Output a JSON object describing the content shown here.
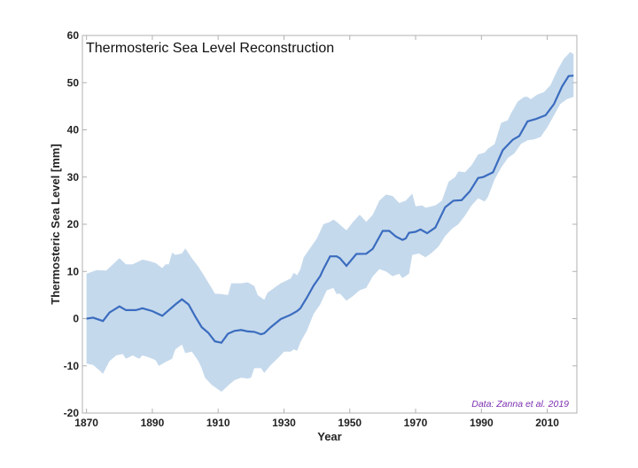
{
  "chart_data": {
    "type": "line",
    "title": "Thermosteric Sea Level Reconstruction",
    "xlabel": "Year",
    "ylabel": "Thermosteric Sea Level [mm]",
    "annotation": "Data: Zanna et al. 2019",
    "xlim": [
      1868.75,
      2019
    ],
    "ylim": [
      -20,
      60
    ],
    "xticks": [
      1870,
      1890,
      1910,
      1930,
      1950,
      1970,
      1990,
      2010
    ],
    "yticks": [
      -20,
      -10,
      0,
      10,
      20,
      30,
      40,
      50,
      60
    ],
    "grid": false,
    "colors": {
      "line": "#3a6cbf",
      "band": "#c5d9ec",
      "annotation": "#7b2fb0",
      "axis": "#b0b0b0"
    },
    "mean": [
      [
        1870,
        0
      ],
      [
        1872,
        0.2
      ],
      [
        1875,
        -0.5
      ],
      [
        1877,
        1.3
      ],
      [
        1880,
        2.6
      ],
      [
        1882,
        1.8
      ],
      [
        1885,
        1.8
      ],
      [
        1887,
        2.2
      ],
      [
        1890,
        1.6
      ],
      [
        1893,
        0.6
      ],
      [
        1895,
        1.8
      ],
      [
        1897,
        3
      ],
      [
        1899,
        4.1
      ],
      [
        1901,
        3
      ],
      [
        1903,
        0.5
      ],
      [
        1905,
        -1.8
      ],
      [
        1907,
        -3
      ],
      [
        1909,
        -4.8
      ],
      [
        1911,
        -5.1
      ],
      [
        1913,
        -3.2
      ],
      [
        1915,
        -2.6
      ],
      [
        1917,
        -2.4
      ],
      [
        1919,
        -2.7
      ],
      [
        1921,
        -2.8
      ],
      [
        1923,
        -3.3
      ],
      [
        1924,
        -3.1
      ],
      [
        1926,
        -1.8
      ],
      [
        1929,
        -0.1
      ],
      [
        1932,
        0.8
      ],
      [
        1934,
        1.6
      ],
      [
        1935,
        2.2
      ],
      [
        1937,
        4.5
      ],
      [
        1939,
        7
      ],
      [
        1941,
        9
      ],
      [
        1942,
        10.5
      ],
      [
        1944,
        13.2
      ],
      [
        1946,
        13.2
      ],
      [
        1947,
        12.8
      ],
      [
        1949,
        11.2
      ],
      [
        1952,
        13.7
      ],
      [
        1955,
        13.75
      ],
      [
        1957,
        14.8
      ],
      [
        1960,
        18.6
      ],
      [
        1962,
        18.6
      ],
      [
        1964,
        17.4
      ],
      [
        1966,
        16.7
      ],
      [
        1967,
        17
      ],
      [
        1968,
        18.2
      ],
      [
        1970,
        18.4
      ],
      [
        1971.5,
        18.9
      ],
      [
        1973.5,
        18.1
      ],
      [
        1976,
        19.3
      ],
      [
        1979,
        23.6
      ],
      [
        1981.5,
        25
      ],
      [
        1984,
        25.1
      ],
      [
        1986.5,
        27
      ],
      [
        1989,
        29.8
      ],
      [
        1990.5,
        30
      ],
      [
        1993.5,
        31
      ],
      [
        1996.5,
        35.7
      ],
      [
        1999.5,
        37.9
      ],
      [
        2001.5,
        38.7
      ],
      [
        2004,
        41.8
      ],
      [
        2006.5,
        42.3
      ],
      [
        2009.5,
        43.1
      ],
      [
        2012,
        45.4
      ],
      [
        2014.5,
        49.2
      ],
      [
        2016.5,
        51.4
      ],
      [
        2018,
        51.5
      ]
    ],
    "upper": [
      [
        1870,
        9.5
      ],
      [
        1873,
        10.3
      ],
      [
        1876,
        10.2
      ],
      [
        1878,
        11.5
      ],
      [
        1880,
        12.8
      ],
      [
        1882,
        11.5
      ],
      [
        1884,
        11.5
      ],
      [
        1887,
        12.5
      ],
      [
        1889,
        12.2
      ],
      [
        1891,
        11.8
      ],
      [
        1893,
        10.7
      ],
      [
        1894,
        11.5
      ],
      [
        1895,
        11.5
      ],
      [
        1896,
        14
      ],
      [
        1897,
        13.5
      ],
      [
        1899,
        13.8
      ],
      [
        1900,
        14.9
      ],
      [
        1902,
        12.8
      ],
      [
        1904,
        11
      ],
      [
        1906,
        8.8
      ],
      [
        1908,
        6.5
      ],
      [
        1909,
        5.3
      ],
      [
        1911,
        5.2
      ],
      [
        1913,
        5
      ],
      [
        1914,
        7.5
      ],
      [
        1917,
        7.5
      ],
      [
        1919,
        7.7
      ],
      [
        1921,
        6.9
      ],
      [
        1922,
        5
      ],
      [
        1924,
        4
      ],
      [
        1925,
        5.5
      ],
      [
        1927,
        6.5
      ],
      [
        1929,
        7.5
      ],
      [
        1932,
        8.5
      ],
      [
        1933,
        9.7
      ],
      [
        1934,
        9.2
      ],
      [
        1935,
        10.5
      ],
      [
        1936,
        13
      ],
      [
        1938,
        15
      ],
      [
        1940,
        17
      ],
      [
        1942,
        20
      ],
      [
        1944,
        20.5
      ],
      [
        1945,
        21
      ],
      [
        1946,
        20.5
      ],
      [
        1949,
        18.7
      ],
      [
        1951,
        20.5
      ],
      [
        1953,
        22
      ],
      [
        1955,
        20.5
      ],
      [
        1957,
        22
      ],
      [
        1959,
        25
      ],
      [
        1961,
        26.3
      ],
      [
        1963,
        26
      ],
      [
        1965,
        24.5
      ],
      [
        1967,
        25
      ],
      [
        1969,
        26.5
      ],
      [
        1970,
        23.8
      ],
      [
        1972,
        24
      ],
      [
        1973,
        23.5
      ],
      [
        1976,
        24
      ],
      [
        1978,
        25
      ],
      [
        1980,
        29
      ],
      [
        1982,
        30
      ],
      [
        1983,
        31.2
      ],
      [
        1985,
        31
      ],
      [
        1987,
        32.5
      ],
      [
        1989,
        34.8
      ],
      [
        1991,
        35.2
      ],
      [
        1992,
        36
      ],
      [
        1994,
        37
      ],
      [
        1996,
        41.5
      ],
      [
        1998,
        42
      ],
      [
        1999,
        43.5
      ],
      [
        2001,
        46
      ],
      [
        2003,
        47
      ],
      [
        2004,
        47
      ],
      [
        2005,
        46.5
      ],
      [
        2007,
        47.5
      ],
      [
        2009,
        48
      ],
      [
        2011,
        49.5
      ],
      [
        2013,
        52.5
      ],
      [
        2015,
        55
      ],
      [
        2017,
        56.5
      ],
      [
        2018,
        56
      ]
    ],
    "lower": [
      [
        1870,
        -9.5
      ],
      [
        1872,
        -9.8
      ],
      [
        1874,
        -11
      ],
      [
        1875,
        -11.7
      ],
      [
        1877,
        -9
      ],
      [
        1879,
        -7.8
      ],
      [
        1881,
        -7.5
      ],
      [
        1882,
        -8.5
      ],
      [
        1884,
        -7.8
      ],
      [
        1886,
        -8.5
      ],
      [
        1887,
        -7.8
      ],
      [
        1889,
        -8.2
      ],
      [
        1891,
        -8.8
      ],
      [
        1892,
        -10
      ],
      [
        1894,
        -9.2
      ],
      [
        1896,
        -8.5
      ],
      [
        1897,
        -6.5
      ],
      [
        1899,
        -5.5
      ],
      [
        1900,
        -7.3
      ],
      [
        1902,
        -7
      ],
      [
        1904,
        -9
      ],
      [
        1905,
        -10.5
      ],
      [
        1906,
        -12.5
      ],
      [
        1908,
        -14
      ],
      [
        1910,
        -15
      ],
      [
        1911,
        -15.5
      ],
      [
        1913,
        -14.2
      ],
      [
        1915,
        -13
      ],
      [
        1917,
        -12.5
      ],
      [
        1919,
        -12.7
      ],
      [
        1920,
        -12.5
      ],
      [
        1921,
        -10.5
      ],
      [
        1923,
        -10.5
      ],
      [
        1924,
        -11.5
      ],
      [
        1926,
        -9.8
      ],
      [
        1928,
        -8.5
      ],
      [
        1930,
        -7
      ],
      [
        1932,
        -7
      ],
      [
        1933,
        -6.5
      ],
      [
        1934,
        -6.8
      ],
      [
        1935,
        -5
      ],
      [
        1937,
        -2.5
      ],
      [
        1939,
        1
      ],
      [
        1941,
        3
      ],
      [
        1943,
        6
      ],
      [
        1945,
        6.5
      ],
      [
        1946,
        5.2
      ],
      [
        1947,
        5.3
      ],
      [
        1949,
        3.8
      ],
      [
        1951,
        4.8
      ],
      [
        1953,
        6
      ],
      [
        1955,
        6.5
      ],
      [
        1957,
        9
      ],
      [
        1959,
        10.5
      ],
      [
        1961,
        10
      ],
      [
        1963,
        9
      ],
      [
        1965,
        9.5
      ],
      [
        1966,
        8.6
      ],
      [
        1968,
        9.5
      ],
      [
        1969,
        13.5
      ],
      [
        1971,
        13.8
      ],
      [
        1973,
        13
      ],
      [
        1975,
        14
      ],
      [
        1977,
        15.3
      ],
      [
        1979,
        17.5
      ],
      [
        1981,
        19
      ],
      [
        1983,
        20
      ],
      [
        1985,
        21.8
      ],
      [
        1987,
        24
      ],
      [
        1989,
        25.5
      ],
      [
        1991,
        24.8
      ],
      [
        1992,
        25.8
      ],
      [
        1994,
        29.5
      ],
      [
        1996,
        32
      ],
      [
        1998,
        34
      ],
      [
        2000,
        35
      ],
      [
        2002,
        37
      ],
      [
        2004,
        37.8
      ],
      [
        2006,
        38
      ],
      [
        2008,
        38.5
      ],
      [
        2010,
        40.5
      ],
      [
        2012,
        43
      ],
      [
        2014,
        45.5
      ],
      [
        2016,
        46.5
      ],
      [
        2018,
        47
      ]
    ]
  }
}
